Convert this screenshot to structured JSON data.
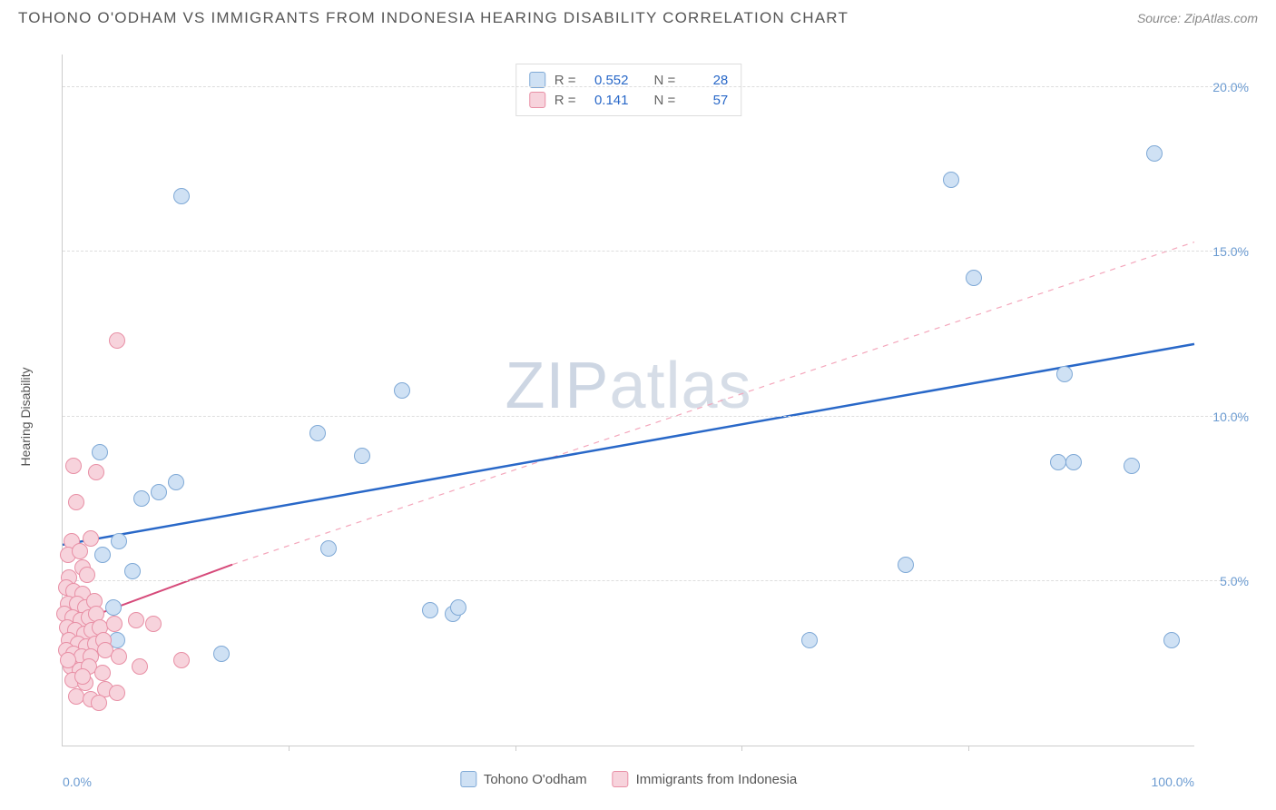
{
  "header": {
    "title": "TOHONO O'ODHAM VS IMMIGRANTS FROM INDONESIA HEARING DISABILITY CORRELATION CHART",
    "source": "Source: ZipAtlas.com"
  },
  "y_axis": {
    "label": "Hearing Disability"
  },
  "watermark": {
    "zip": "ZIP",
    "atlas": "atlas"
  },
  "chart": {
    "type": "scatter",
    "xlim": [
      0,
      100
    ],
    "ylim": [
      0,
      21
    ],
    "y_ticks": [
      {
        "v": 5,
        "label": "5.0%"
      },
      {
        "v": 10,
        "label": "10.0%"
      },
      {
        "v": 15,
        "label": "15.0%"
      },
      {
        "v": 20,
        "label": "20.0%"
      }
    ],
    "x_ticks_minor": [
      20,
      40,
      60,
      80
    ],
    "x_ticks_labeled": [
      {
        "v": 0,
        "label": "0.0%",
        "align": "left"
      },
      {
        "v": 100,
        "label": "100.0%",
        "align": "right"
      }
    ],
    "grid_color": "#dddddd",
    "background_color": "#ffffff",
    "axis_color": "#cccccc",
    "tick_label_color": "#6b9bd1",
    "marker_radius": 9,
    "series": [
      {
        "id": "tohono",
        "label": "Tohono O'odham",
        "fill": "#cfe1f4",
        "stroke": "#7fa9d6",
        "R": "0.552",
        "N": "28",
        "trend": {
          "x1": 0,
          "y1": 6.1,
          "x2": 100,
          "y2": 12.2,
          "color": "#2968c8",
          "width": 2.5,
          "dash": null
        },
        "points": [
          [
            10.5,
            16.7
          ],
          [
            78.5,
            17.2
          ],
          [
            96.5,
            18.0
          ],
          [
            80.5,
            14.2
          ],
          [
            88.5,
            11.3
          ],
          [
            88.0,
            8.6
          ],
          [
            89.3,
            8.6
          ],
          [
            94.5,
            8.5
          ],
          [
            98.0,
            3.2
          ],
          [
            74.5,
            5.5
          ],
          [
            66.0,
            3.2
          ],
          [
            30.0,
            10.8
          ],
          [
            26.5,
            8.8
          ],
          [
            22.5,
            9.5
          ],
          [
            23.5,
            6.0
          ],
          [
            34.5,
            4.0
          ],
          [
            35.0,
            4.2
          ],
          [
            14.0,
            2.8
          ],
          [
            4.5,
            4.2
          ],
          [
            3.5,
            5.8
          ],
          [
            5.0,
            6.2
          ],
          [
            7.0,
            7.5
          ],
          [
            8.5,
            7.7
          ],
          [
            10.0,
            8.0
          ],
          [
            6.2,
            5.3
          ],
          [
            3.3,
            8.9
          ],
          [
            32.5,
            4.1
          ],
          [
            4.8,
            3.2
          ]
        ]
      },
      {
        "id": "indonesia",
        "label": "Immigrants from Indonesia",
        "fill": "#f7d3dc",
        "stroke": "#e88fa5",
        "R": "0.141",
        "N": "57",
        "trend_solid": {
          "x1": 0,
          "y1": 3.6,
          "x2": 15,
          "y2": 5.5,
          "color": "#d64a7a",
          "width": 2,
          "dash": null
        },
        "trend_dashed": {
          "x1": 15,
          "y1": 5.5,
          "x2": 100,
          "y2": 15.3,
          "color": "#f4a6bb",
          "width": 1.2,
          "dash": "6 6"
        },
        "points": [
          [
            4.8,
            12.3
          ],
          [
            1.0,
            8.5
          ],
          [
            3.0,
            8.3
          ],
          [
            1.2,
            7.4
          ],
          [
            0.8,
            6.2
          ],
          [
            2.5,
            6.3
          ],
          [
            0.5,
            5.8
          ],
          [
            1.5,
            5.9
          ],
          [
            1.8,
            5.4
          ],
          [
            0.6,
            5.1
          ],
          [
            2.2,
            5.2
          ],
          [
            0.3,
            4.8
          ],
          [
            1.0,
            4.7
          ],
          [
            1.8,
            4.6
          ],
          [
            0.5,
            4.3
          ],
          [
            1.3,
            4.3
          ],
          [
            2.0,
            4.2
          ],
          [
            2.8,
            4.4
          ],
          [
            0.2,
            4.0
          ],
          [
            0.9,
            3.9
          ],
          [
            1.6,
            3.8
          ],
          [
            2.3,
            3.9
          ],
          [
            3.0,
            4.0
          ],
          [
            0.4,
            3.6
          ],
          [
            1.1,
            3.5
          ],
          [
            1.9,
            3.4
          ],
          [
            2.6,
            3.5
          ],
          [
            3.3,
            3.6
          ],
          [
            4.6,
            3.7
          ],
          [
            6.5,
            3.8
          ],
          [
            8.0,
            3.7
          ],
          [
            0.6,
            3.2
          ],
          [
            1.4,
            3.1
          ],
          [
            2.1,
            3.0
          ],
          [
            2.9,
            3.1
          ],
          [
            3.6,
            3.2
          ],
          [
            0.3,
            2.9
          ],
          [
            1.0,
            2.8
          ],
          [
            1.7,
            2.7
          ],
          [
            2.5,
            2.7
          ],
          [
            3.8,
            2.9
          ],
          [
            5.0,
            2.7
          ],
          [
            10.5,
            2.6
          ],
          [
            0.7,
            2.4
          ],
          [
            1.5,
            2.3
          ],
          [
            2.3,
            2.4
          ],
          [
            3.5,
            2.2
          ],
          [
            6.8,
            2.4
          ],
          [
            0.9,
            2.0
          ],
          [
            2.0,
            1.9
          ],
          [
            3.8,
            1.7
          ],
          [
            4.8,
            1.6
          ],
          [
            1.2,
            1.5
          ],
          [
            2.5,
            1.4
          ],
          [
            3.2,
            1.3
          ],
          [
            0.5,
            2.6
          ],
          [
            1.8,
            2.1
          ]
        ]
      }
    ]
  },
  "stats_box": {
    "rows": [
      {
        "series": "tohono",
        "R_label": "R =",
        "N_label": "N ="
      },
      {
        "series": "indonesia",
        "R_label": "R =",
        "N_label": "N ="
      }
    ]
  },
  "legend": {
    "items": [
      {
        "series": "tohono"
      },
      {
        "series": "indonesia"
      }
    ]
  }
}
